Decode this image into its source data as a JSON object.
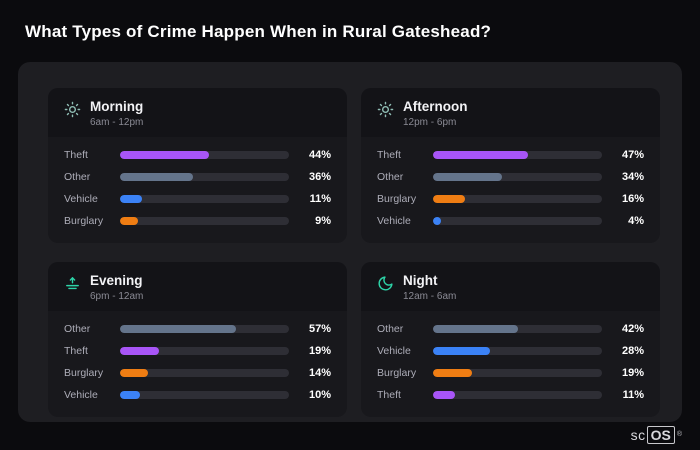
{
  "page_title": "What Types of Crime Happen When in Rural Gateshead?",
  "brand": {
    "sc": "sc",
    "os": "OS",
    "reg": "®"
  },
  "colors": {
    "theft": "#a855f7",
    "other": "#64748b",
    "vehicle": "#3b82f6",
    "burglary": "#ef7d13"
  },
  "chart_data": [
    {
      "type": "bar",
      "title": "Morning",
      "subtitle": "6am - 12pm",
      "icon": "sun-icon",
      "icon_color": "#8fbdb4",
      "unit": "%",
      "xlim": [
        0,
        100
      ],
      "categories": [
        "Theft",
        "Other",
        "Vehicle",
        "Burglary"
      ],
      "values": [
        44,
        36,
        11,
        9
      ]
    },
    {
      "type": "bar",
      "title": "Afternoon",
      "subtitle": "12pm - 6pm",
      "icon": "sun-icon",
      "icon_color": "#8fbdb4",
      "unit": "%",
      "xlim": [
        0,
        100
      ],
      "categories": [
        "Theft",
        "Other",
        "Burglary",
        "Vehicle"
      ],
      "values": [
        47,
        34,
        16,
        4
      ]
    },
    {
      "type": "bar",
      "title": "Evening",
      "subtitle": "6pm - 12am",
      "icon": "sunset-icon",
      "icon_color": "#2dd4a8",
      "unit": "%",
      "xlim": [
        0,
        100
      ],
      "categories": [
        "Other",
        "Theft",
        "Burglary",
        "Vehicle"
      ],
      "values": [
        57,
        19,
        14,
        10
      ]
    },
    {
      "type": "bar",
      "title": "Night",
      "subtitle": "12am - 6am",
      "icon": "moon-icon",
      "icon_color": "#2dd4a8",
      "unit": "%",
      "xlim": [
        0,
        100
      ],
      "categories": [
        "Other",
        "Vehicle",
        "Burglary",
        "Theft"
      ],
      "values": [
        42,
        28,
        19,
        11
      ]
    }
  ]
}
